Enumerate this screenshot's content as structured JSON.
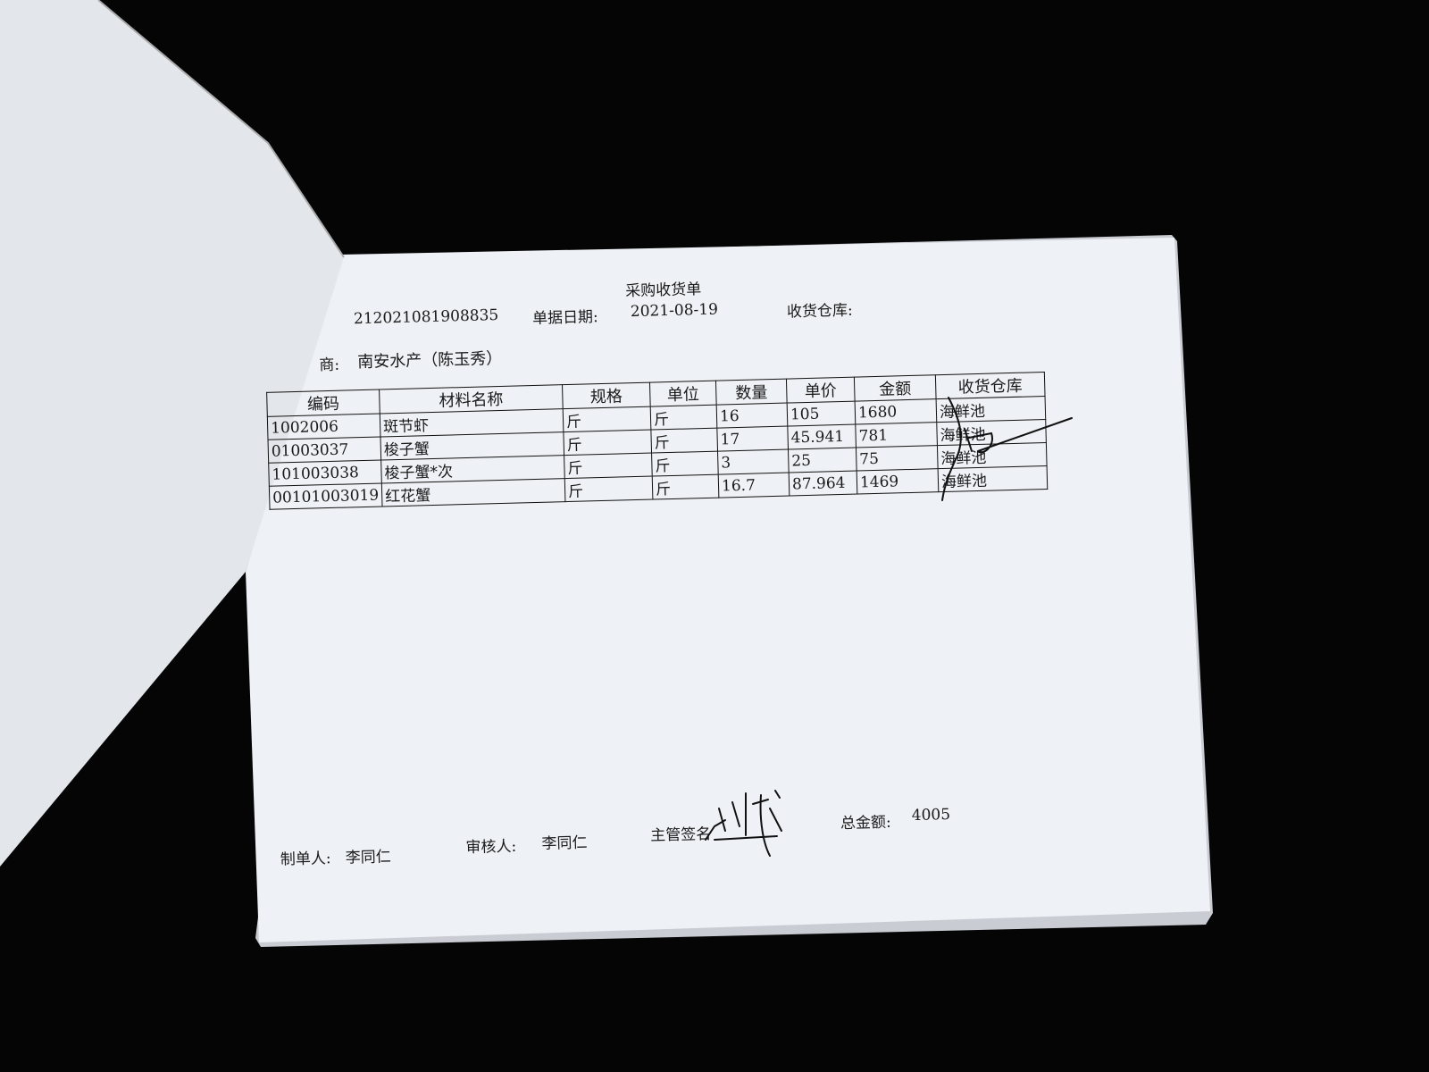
{
  "document": {
    "title": "采购收货单",
    "order_number": "212021081908835",
    "date_label": "单据日期:",
    "date_value": "2021-08-19",
    "warehouse_label": "收货仓库:",
    "supplier_label": "商:",
    "supplier_value": "南安水产（陈玉秀）",
    "table": {
      "headers": [
        "编码",
        "材料名称",
        "规格",
        "单位",
        "数量",
        "单价",
        "金额",
        "收货仓库"
      ],
      "rows": [
        [
          "1002006",
          "斑节虾",
          "斤",
          "斤",
          "16",
          "105",
          "1680",
          "海鲜池"
        ],
        [
          "01003037",
          "梭子蟹",
          "斤",
          "斤",
          "17",
          "45.941",
          "781",
          "海鲜池"
        ],
        [
          "101003038",
          "梭子蟹*次",
          "斤",
          "斤",
          "3",
          "25",
          "75",
          "海鲜池"
        ],
        [
          "00101003019",
          "红花蟹",
          "斤",
          "斤",
          "16.7",
          "87.964",
          "1469",
          "海鲜池"
        ]
      ]
    },
    "footer": {
      "maker_label": "制单人:",
      "maker_value": "李同仁",
      "reviewer_label": "审核人:",
      "reviewer_value": "李同仁",
      "supervisor_label": "主管签名",
      "total_label": "总金额:",
      "total_value": "4005"
    }
  },
  "colors": {
    "background": "#050505",
    "paper": "#eef1f5",
    "ink": "#1a1a1a"
  }
}
